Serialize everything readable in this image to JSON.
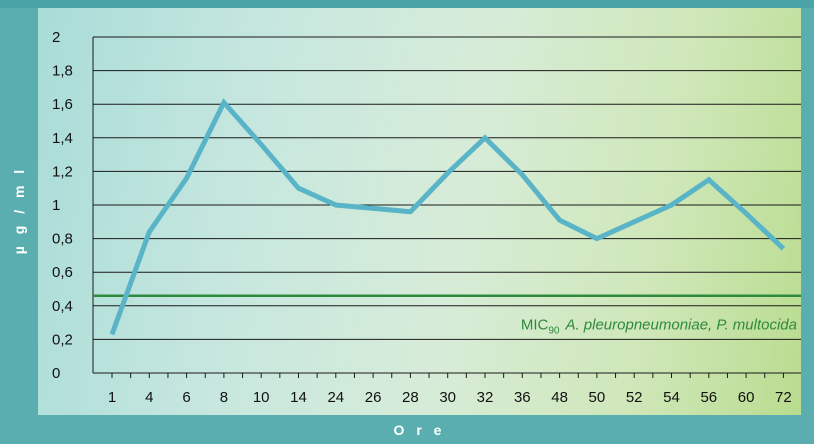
{
  "chart_data": {
    "type": "line",
    "xlabel": "O r e",
    "ylabel": "µ g / m l",
    "categories": [
      "1",
      "4",
      "6",
      "8",
      "10",
      "14",
      "24",
      "26",
      "28",
      "30",
      "32",
      "36",
      "48",
      "50",
      "52",
      "54",
      "56",
      "60",
      "72"
    ],
    "ylim": [
      0,
      2
    ],
    "yticks": [
      "0",
      "0,2",
      "0,4",
      "0,6",
      "0,8",
      "1",
      "1,2",
      "1,4",
      "1,6",
      "1,8",
      "2"
    ],
    "yticks_values": [
      0,
      0.2,
      0.4,
      0.6,
      0.8,
      1.0,
      1.2,
      1.4,
      1.6,
      1.8,
      2.0
    ],
    "series": [
      {
        "values": [
          0.23,
          0.84,
          1.16,
          1.61,
          1.36,
          1.1,
          1.0,
          0.98,
          0.96,
          1.19,
          1.4,
          1.18,
          0.91,
          0.8,
          0.9,
          1.0,
          1.15,
          0.95,
          0.74
        ],
        "color": "#5ab4c8"
      }
    ],
    "reference_line": {
      "value": 0.46,
      "color": "#2e8a3c",
      "label_main": "MIC",
      "label_sub": "90",
      "label_rest": "A. pleuropneumoniae, P. multocida"
    },
    "grid": "horizontal"
  }
}
